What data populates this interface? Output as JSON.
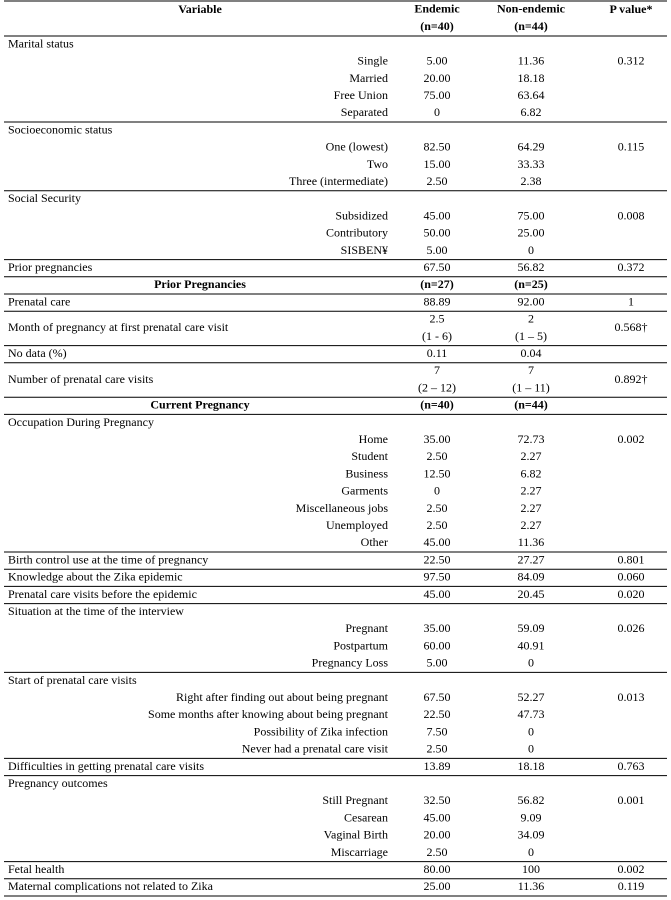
{
  "header": {
    "variable": "Variable",
    "endemic": [
      "Endemic",
      "(n=40)"
    ],
    "non_endemic": [
      "Non-endemic",
      "(n=44)"
    ],
    "p_value": "P value*"
  },
  "blocks": [
    {
      "title": "Marital status",
      "p_value": "0.312",
      "items": [
        {
          "label": "Single",
          "endemic": "5.00",
          "non_endemic": "11.36"
        },
        {
          "label": "Married",
          "endemic": "20.00",
          "non_endemic": "18.18"
        },
        {
          "label": "Free Union",
          "endemic": "75.00",
          "non_endemic": "63.64"
        },
        {
          "label": "Separated",
          "endemic": "0",
          "non_endemic": "6.82"
        }
      ]
    },
    {
      "title": "Socioeconomic status",
      "p_value": "0.115",
      "items": [
        {
          "label": "One (lowest)",
          "endemic": "82.50",
          "non_endemic": "64.29"
        },
        {
          "label": "Two",
          "endemic": "15.00",
          "non_endemic": "33.33"
        },
        {
          "label": "Three (intermediate)",
          "endemic": "2.50",
          "non_endemic": "2.38"
        }
      ]
    },
    {
      "title": "Social Security",
      "p_value": "0.008",
      "items": [
        {
          "label": "Subsidized",
          "endemic": "45.00",
          "non_endemic": "75.00"
        },
        {
          "label": "Contributory",
          "endemic": "50.00",
          "non_endemic": "25.00"
        },
        {
          "label": "SISBEN¥",
          "endemic": "5.00",
          "non_endemic": "0"
        }
      ]
    },
    {
      "label": "Prior pregnancies",
      "endemic": "67.50",
      "non_endemic": "56.82",
      "p_value": "0.372"
    },
    {
      "heading": "Prior Pregnancies",
      "endemic": "(n=27)",
      "non_endemic": "(n=25)"
    },
    {
      "label": "Prenatal care",
      "endemic": "88.89",
      "non_endemic": "92.00",
      "p_value": "1"
    },
    {
      "label": "Month of pregnancy at first prenatal care visit",
      "endemic": [
        "2.5",
        "(1 - 6)"
      ],
      "non_endemic": [
        "2",
        "(1 – 5)"
      ],
      "p_value": "0.568†"
    },
    {
      "label": "No data (%)",
      "endemic": "0.11",
      "non_endemic": "0.04"
    },
    {
      "label": "Number of prenatal care visits",
      "endemic": [
        "7",
        "(2 – 12)"
      ],
      "non_endemic": [
        "7",
        "(1 – 11)"
      ],
      "p_value": "0.892†"
    },
    {
      "heading": "Current Pregnancy",
      "endemic": "(n=40)",
      "non_endemic": "(n=44)"
    },
    {
      "title": "Occupation During Pregnancy",
      "p_value": "0.002",
      "items": [
        {
          "label": "Home",
          "endemic": "35.00",
          "non_endemic": "72.73"
        },
        {
          "label": "Student",
          "endemic": "2.50",
          "non_endemic": "2.27"
        },
        {
          "label": "Business",
          "endemic": "12.50",
          "non_endemic": "6.82"
        },
        {
          "label": "Garments",
          "endemic": "0",
          "non_endemic": "2.27"
        },
        {
          "label": "Miscellaneous jobs",
          "endemic": "2.50",
          "non_endemic": "2.27"
        },
        {
          "label": "Unemployed",
          "endemic": "2.50",
          "non_endemic": "2.27"
        },
        {
          "label": "Other",
          "endemic": "45.00",
          "non_endemic": "11.36"
        }
      ]
    },
    {
      "label": "Birth control use at the time of pregnancy",
      "endemic": "22.50",
      "non_endemic": "27.27",
      "p_value": "0.801"
    },
    {
      "label": "Knowledge about the Zika epidemic",
      "endemic": "97.50",
      "non_endemic": "84.09",
      "p_value": "0.060"
    },
    {
      "label": "Prenatal care visits before the epidemic",
      "endemic": "45.00",
      "non_endemic": "20.45",
      "p_value": "0.020"
    },
    {
      "title": "Situation at the time of the interview",
      "p_value": "0.026",
      "items": [
        {
          "label": "Pregnant",
          "endemic": "35.00",
          "non_endemic": "59.09"
        },
        {
          "label": "Postpartum",
          "endemic": "60.00",
          "non_endemic": "40.91"
        },
        {
          "label": "Pregnancy Loss",
          "endemic": "5.00",
          "non_endemic": "0"
        }
      ]
    },
    {
      "title": "Start of prenatal care visits",
      "p_value": "0.013",
      "items": [
        {
          "label": "Right after finding out about being pregnant",
          "endemic": "67.50",
          "non_endemic": "52.27"
        },
        {
          "label": "Some months after knowing about being pregnant",
          "endemic": "22.50",
          "non_endemic": "47.73"
        },
        {
          "label": "Possibility of Zika infection",
          "endemic": "7.50",
          "non_endemic": "0"
        },
        {
          "label": "Never had a prenatal care visit",
          "endemic": "2.50",
          "non_endemic": "0"
        }
      ]
    },
    {
      "label": "Difficulties in getting prenatal care visits",
      "endemic": "13.89",
      "non_endemic": "18.18",
      "p_value": "0.763"
    },
    {
      "title": "Pregnancy outcomes",
      "p_value": "0.001",
      "items": [
        {
          "label": "Still Pregnant",
          "endemic": "32.50",
          "non_endemic": "56.82"
        },
        {
          "label": "Cesarean",
          "endemic": "45.00",
          "non_endemic": "9.09"
        },
        {
          "label": "Vaginal Birth",
          "endemic": "20.00",
          "non_endemic": "34.09"
        },
        {
          "label": "Miscarriage",
          "endemic": "2.50",
          "non_endemic": "0"
        }
      ]
    },
    {
      "label": "Fetal health",
      "endemic": "80.00",
      "non_endemic": "100",
      "p_value": "0.002"
    },
    {
      "label": "Maternal complications not related to  Zika",
      "endemic": "25.00",
      "non_endemic": "11.36",
      "p_value": "0.119"
    }
  ]
}
